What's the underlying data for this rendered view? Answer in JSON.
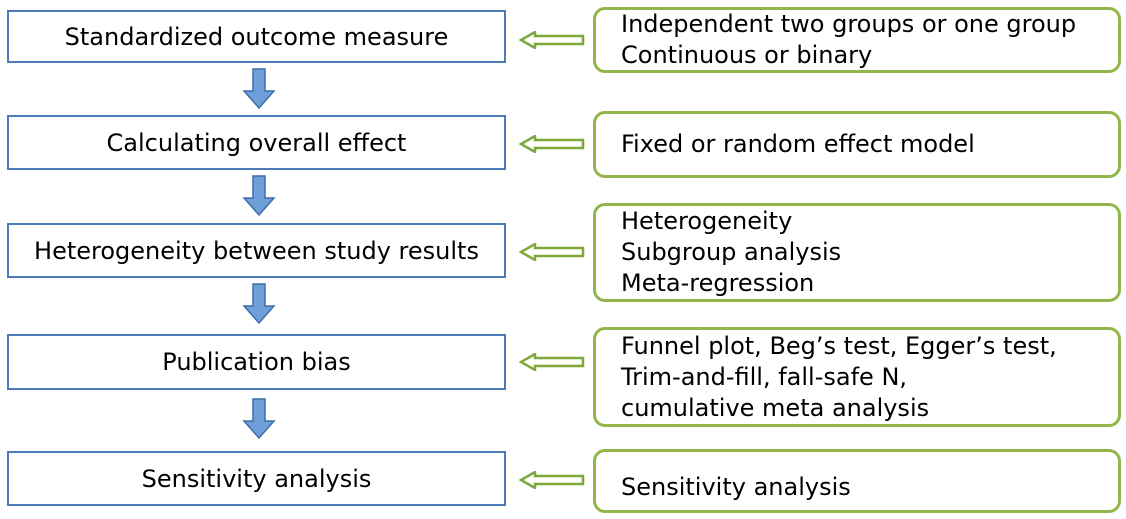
{
  "steps": [
    {
      "label": "Standardized outcome measure"
    },
    {
      "label": "Calculating overall effect"
    },
    {
      "label": "Heterogeneity between study results"
    },
    {
      "label": "Publication bias"
    },
    {
      "label": "Sensitivity analysis"
    }
  ],
  "notes": [
    {
      "lines": [
        "Independent two groups or one group",
        "Continuous or binary"
      ]
    },
    {
      "lines": [
        "Fixed or random effect model"
      ]
    },
    {
      "lines": [
        "Heterogeneity",
        "Subgroup analysis",
        "Meta-regression"
      ]
    },
    {
      "lines": [
        "Funnel plot, Beg’s test, Egger’s test,",
        "Trim-and-fill, fall-safe N,",
        "cumulative meta analysis"
      ]
    },
    {
      "lines": [
        "Sensitivity analysis"
      ]
    }
  ],
  "colors": {
    "step_border": "#4a7ab8",
    "note_border": "#92b64a",
    "down_arrow_fill": "#6f9fd8",
    "down_arrow_stroke": "#3e6ea8",
    "left_arrow_stroke": "#7fa83a"
  }
}
